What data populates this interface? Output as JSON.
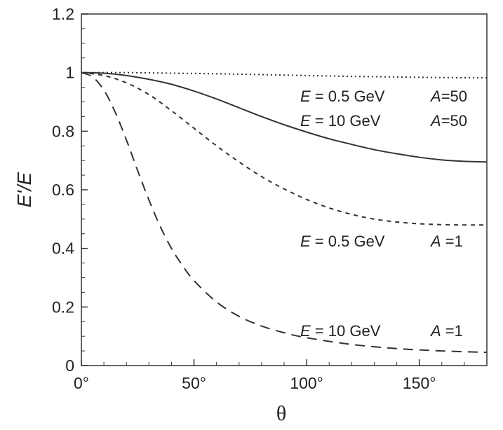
{
  "chart_data": {
    "type": "line",
    "xlabel": "θ",
    "ylabel": "E'/E",
    "xlim": [
      0,
      180
    ],
    "ylim": [
      0,
      1.2
    ],
    "x_ticks": [
      {
        "value": 0,
        "label": "0°"
      },
      {
        "value": 50,
        "label": "50°"
      },
      {
        "value": 100,
        "label": "100°"
      },
      {
        "value": 150,
        "label": "150°"
      }
    ],
    "y_ticks": [
      {
        "value": 0,
        "label": "0"
      },
      {
        "value": 0.2,
        "label": "0.2"
      },
      {
        "value": 0.4,
        "label": "0.4"
      },
      {
        "value": 0.6,
        "label": "0.6"
      },
      {
        "value": 0.8,
        "label": "0.8"
      },
      {
        "value": 1,
        "label": "1"
      },
      {
        "value": 1.2,
        "label": "1.2"
      }
    ],
    "grid": false,
    "series": [
      {
        "E": "0.5 GeV",
        "A": "50",
        "style": "dotted",
        "x": [
          0,
          20,
          40,
          60,
          80,
          100,
          120,
          140,
          160,
          180
        ],
        "y": [
          1.0,
          1.0,
          0.998,
          0.996,
          0.993,
          0.99,
          0.987,
          0.985,
          0.983,
          0.982
        ]
      },
      {
        "E": "10 GeV",
        "A": "50",
        "style": "solid",
        "x": [
          0,
          10,
          20,
          30,
          40,
          50,
          60,
          70,
          80,
          90,
          100,
          110,
          120,
          130,
          140,
          150,
          160,
          170,
          180
        ],
        "y": [
          1.0,
          0.998,
          0.99,
          0.977,
          0.96,
          0.937,
          0.91,
          0.88,
          0.85,
          0.822,
          0.797,
          0.774,
          0.755,
          0.737,
          0.723,
          0.711,
          0.702,
          0.697,
          0.695
        ]
      },
      {
        "E": "0.5 GeV",
        "A": "1",
        "style": "short-dash",
        "x": [
          0,
          10,
          20,
          30,
          40,
          50,
          60,
          70,
          80,
          90,
          100,
          110,
          120,
          130,
          140,
          150,
          160,
          170,
          180
        ],
        "y": [
          1.0,
          0.99,
          0.965,
          0.925,
          0.87,
          0.81,
          0.75,
          0.695,
          0.645,
          0.603,
          0.567,
          0.538,
          0.516,
          0.5,
          0.49,
          0.484,
          0.481,
          0.48,
          0.48
        ]
      },
      {
        "E": "10 GeV",
        "A": "1",
        "style": "long-dash",
        "x": [
          0,
          5,
          10,
          15,
          20,
          25,
          30,
          35,
          40,
          45,
          50,
          60,
          70,
          80,
          90,
          100,
          120,
          140,
          160,
          180
        ],
        "y": [
          1.0,
          0.985,
          0.94,
          0.865,
          0.77,
          0.665,
          0.565,
          0.475,
          0.4,
          0.34,
          0.29,
          0.217,
          0.168,
          0.135,
          0.112,
          0.095,
          0.072,
          0.058,
          0.05,
          0.045
        ]
      }
    ],
    "annotations": [
      {
        "E_label": "E",
        "E_text": " = 0.5 GeV",
        "A_label": "A",
        "A_text": "=50"
      },
      {
        "E_label": "E",
        "E_text": " = 10 GeV",
        "A_label": "A",
        "A_text": "=50"
      },
      {
        "E_label": "E",
        "E_text": " = 0.5 GeV",
        "A_label": "A",
        "A_text": " =1"
      },
      {
        "E_label": "E",
        "E_text": " = 10 GeV",
        "A_label": "A",
        "A_text": " =1"
      }
    ]
  }
}
